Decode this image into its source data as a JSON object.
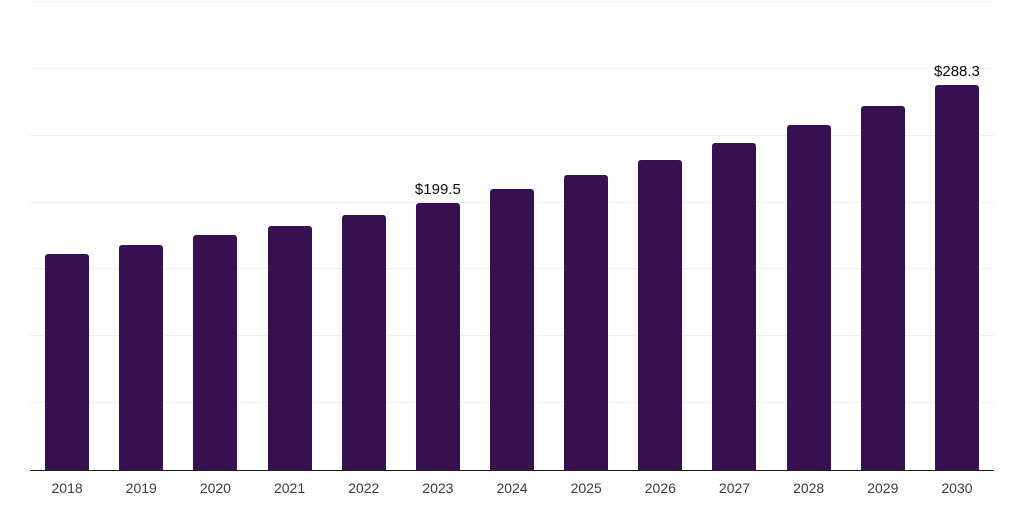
{
  "chart_data": {
    "type": "bar",
    "title": "",
    "xlabel": "",
    "ylabel": "",
    "categories": [
      "2018",
      "2019",
      "2020",
      "2021",
      "2022",
      "2023",
      "2024",
      "2025",
      "2026",
      "2027",
      "2028",
      "2029",
      "2030"
    ],
    "values": [
      161.4,
      168.5,
      175.7,
      182.4,
      190.5,
      199.5,
      209.8,
      220.9,
      231.5,
      244.2,
      257.8,
      272.5,
      288.3
    ],
    "data_labels": [
      "",
      "",
      "",
      "",
      "",
      "$199.5",
      "",
      "",
      "",
      "",
      "",
      "",
      "$288.3"
    ],
    "ylim": [
      0,
      350
    ],
    "grid_step": 50,
    "grid": "horizontal-only",
    "y_tick_labels_visible": false,
    "legend": "none",
    "colors": {
      "bar": "#37114f",
      "gridline": "#f0f0f2",
      "axis_line": "#1c1c1c",
      "x_tick_label": "#3c3c3c",
      "value_label": "#0a0a0a",
      "background": "#ffffff"
    }
  }
}
